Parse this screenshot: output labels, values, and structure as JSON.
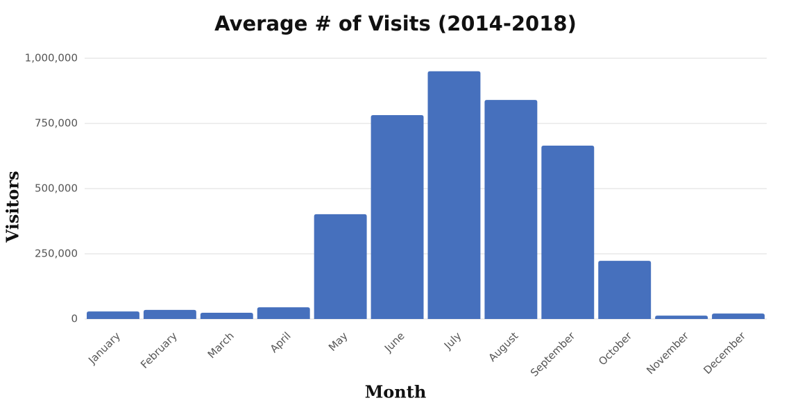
{
  "chart_data": {
    "type": "bar",
    "title": "Average # of Visits (2014-2018)",
    "x_label": "Month",
    "y_label": "Visitors",
    "categories": [
      "January",
      "February",
      "March",
      "April",
      "May",
      "June",
      "July",
      "August",
      "September",
      "October",
      "November",
      "December"
    ],
    "values": [
      29000,
      35000,
      24000,
      45000,
      402000,
      782000,
      950000,
      840000,
      665000,
      223000,
      13000,
      21000
    ],
    "color": "#4670bd",
    "ylim": [
      0,
      1000000
    ],
    "yticks": [
      0,
      {
        "value": 250000,
        "label": "250,000"
      },
      {
        "value": 500000,
        "label": "500,000"
      },
      {
        "value": 750000,
        "label": "750,000"
      },
      {
        "value": 1000000,
        "label": "1,000,000"
      }
    ],
    "grid": true
  }
}
